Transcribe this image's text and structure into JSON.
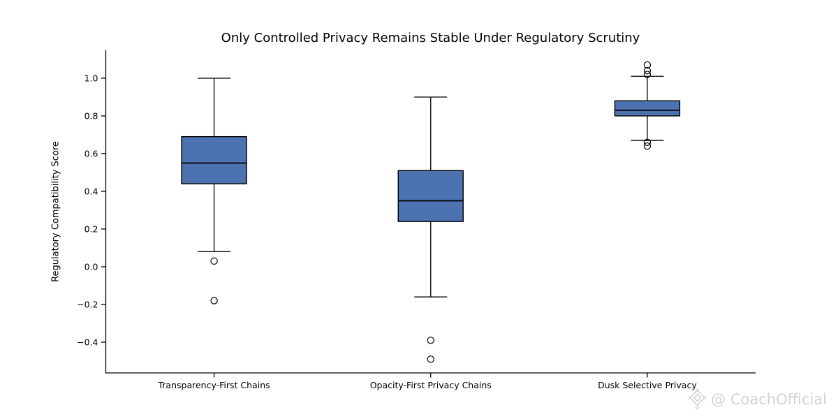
{
  "chart_data": {
    "type": "box",
    "title": "Only Controlled Privacy Remains Stable Under Regulatory Scrutiny",
    "xlabel": "",
    "ylabel": "Regulatory Compatibility Score",
    "categories": [
      "Transparency-First Chains",
      "Opacity-First Privacy Chains",
      "Dusk Selective Privacy"
    ],
    "yticks": [
      1.0,
      0.8,
      0.6,
      0.4,
      0.2,
      0.0,
      -0.2,
      -0.4
    ],
    "ylim": [
      -0.563,
      1.148
    ],
    "grid": false,
    "legend": false,
    "series": [
      {
        "name": "Transparency-First Chains",
        "whisker_low": 0.08,
        "q1": 0.44,
        "median": 0.55,
        "q3": 0.69,
        "whisker_high": 1.0,
        "outliers": [
          0.03,
          -0.18
        ]
      },
      {
        "name": "Opacity-First Privacy Chains",
        "whisker_low": -0.16,
        "q1": 0.24,
        "median": 0.35,
        "q3": 0.51,
        "whisker_high": 0.9,
        "outliers": [
          -0.39,
          -0.49
        ]
      },
      {
        "name": "Dusk Selective Privacy",
        "whisker_low": 0.67,
        "q1": 0.8,
        "median": 0.83,
        "q3": 0.88,
        "whisker_high": 1.01,
        "outliers": [
          1.07,
          1.04,
          1.02,
          0.66,
          0.64
        ]
      }
    ],
    "colors": {
      "box_fill": "#4C72B0",
      "line": "#000000",
      "background": "#ffffff"
    }
  },
  "watermark": {
    "text": "@ CoachOfficial",
    "icon": "gem-logo-icon",
    "color": "#d3d3d3"
  }
}
